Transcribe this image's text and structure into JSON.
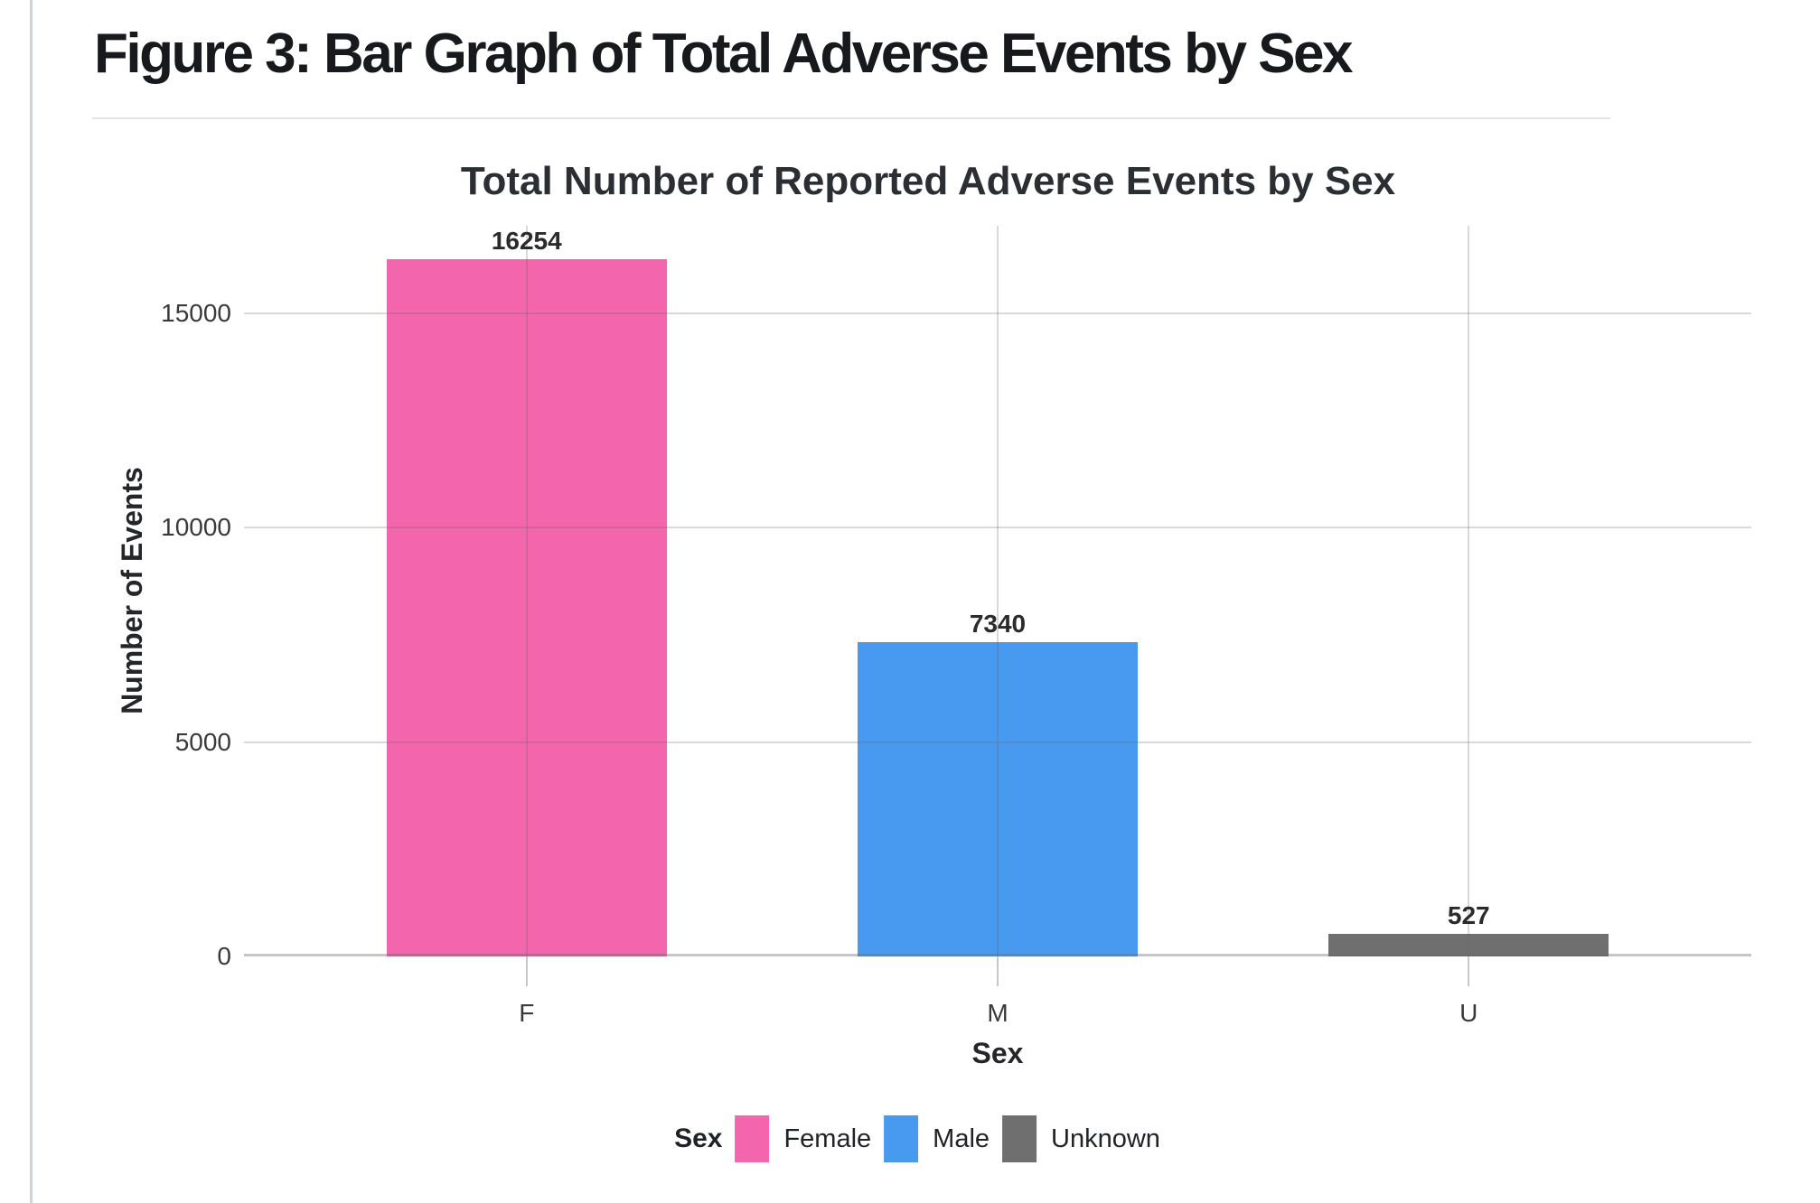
{
  "page": {
    "figure_title": "Figure 3: Bar Graph of Total Adverse Events by Sex"
  },
  "chart_data": {
    "type": "bar",
    "title": "Total Number of Reported Adverse Events by Sex",
    "xlabel": "Sex",
    "ylabel": "Number of Events",
    "categories": [
      "F",
      "M",
      "U"
    ],
    "values": [
      16254,
      7340,
      527
    ],
    "bar_value_labels": [
      "16254",
      "7340",
      "527"
    ],
    "bar_colors": [
      "#f365ac",
      "#4899f0",
      "#6f6f6f"
    ],
    "yticks": [
      0,
      5000,
      10000,
      15000
    ],
    "ytick_labels": [
      "0",
      "5000",
      "10000",
      "15000"
    ],
    "ylim": [
      0,
      17040
    ],
    "grid": true,
    "gridlines": "major horizontal at yticks plus vertical at category centers",
    "legend": {
      "position": "bottom-center",
      "title": "Sex",
      "entries": [
        {
          "label": "Female",
          "color": "#f365ac"
        },
        {
          "label": "Male",
          "color": "#4899f0"
        },
        {
          "label": "Unknown",
          "color": "#6f6f6f"
        }
      ]
    }
  }
}
